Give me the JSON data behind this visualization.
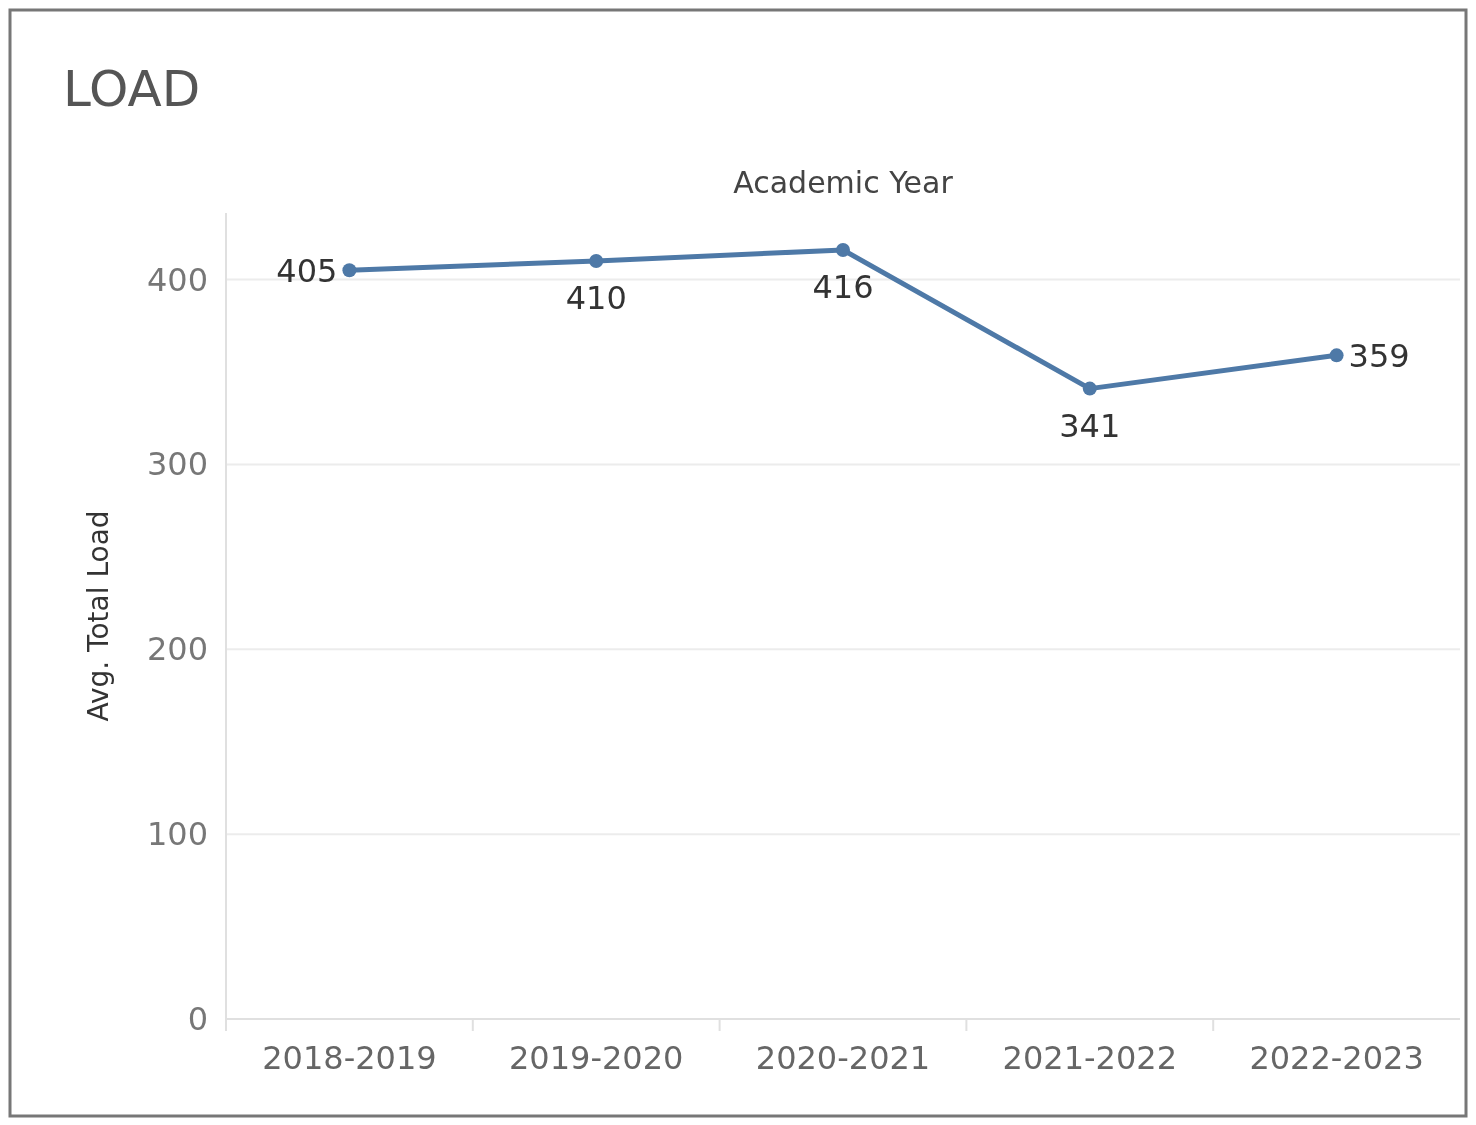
{
  "chart_data": {
    "type": "line",
    "title": "LOAD",
    "xlabel": "Academic Year",
    "ylabel": "Avg. Total Load",
    "categories": [
      "2018-2019",
      "2019-2020",
      "2020-2021",
      "2021-2022",
      "2022-2023"
    ],
    "series": [
      {
        "color": "#4e79a7",
        "values": [
          405,
          410,
          416,
          341,
          359
        ]
      }
    ],
    "ylim": [
      0,
      436
    ],
    "yticks": [
      0,
      100,
      200,
      300,
      400
    ],
    "grid": "y",
    "data_labels": true,
    "marker": "circle",
    "line_style": "solid"
  }
}
